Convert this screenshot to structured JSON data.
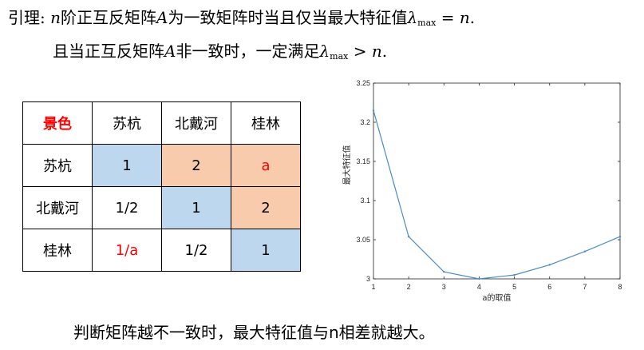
{
  "lemma": {
    "line1": {
      "prefix": "引理: ",
      "n": "n",
      "text_a": "阶正互反矩阵",
      "A": "A",
      "text_b": "为一致矩阵时当且仅当最大特征值",
      "lambda": "λ",
      "sub": "max",
      "rel": " = ",
      "n2": "n",
      "end": "."
    },
    "line2": {
      "text_a": "且当正互反矩阵",
      "A": "A",
      "text_b": "非一致时，一定满足",
      "lambda": "λ",
      "sub": "max",
      "rel": " > ",
      "n2": "n",
      "end": "."
    }
  },
  "table": {
    "header": [
      "景色",
      "苏杭",
      "北戴河",
      "桂林"
    ],
    "rows": [
      [
        "苏杭",
        "1",
        "2",
        "a"
      ],
      [
        "北戴河",
        "1/2",
        "1",
        "2"
      ],
      [
        "桂林",
        "1/a",
        "1/2",
        "1"
      ]
    ],
    "colors": {
      "header_corner_text": "#ff0000",
      "blue_cell": "#bdd7ee",
      "orange_cell": "#f8cbad",
      "variable_text": "#ff0000"
    }
  },
  "chart_data": {
    "type": "line",
    "x": [
      1,
      2,
      3,
      4,
      5,
      6,
      7,
      8
    ],
    "series": [
      {
        "values": [
          3.215,
          3.054,
          3.009,
          3.0,
          3.005,
          3.018,
          3.035,
          3.054
        ],
        "color": "#4a8cc7"
      }
    ],
    "xlabel": "a的取值",
    "ylabel": "最大特征值",
    "xlim": [
      1,
      8
    ],
    "ylim": [
      3,
      3.25
    ],
    "xticks": [
      "1",
      "2",
      "3",
      "4",
      "5",
      "6",
      "7",
      "8"
    ],
    "yticks": [
      "3",
      "3.05",
      "3.1",
      "3.15",
      "3.2",
      "3.25"
    ],
    "grid": false
  },
  "footer": "判断矩阵越不一致时，最大特征值与n相差就越大。"
}
